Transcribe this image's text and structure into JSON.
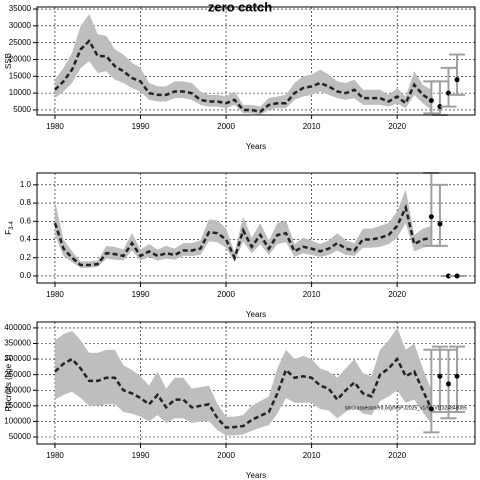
{
  "chart_data": [
    {
      "type": "line",
      "title": "zero catch",
      "ylabel": "SSB",
      "xlabel": "Years",
      "x": [
        1980,
        1981,
        1982,
        1983,
        1984,
        1985,
        1986,
        1987,
        1988,
        1989,
        1990,
        1991,
        1992,
        1993,
        1994,
        1995,
        1996,
        1997,
        1998,
        1999,
        2000,
        2001,
        2002,
        2003,
        2004,
        2005,
        2006,
        2007,
        2008,
        2009,
        2010,
        2011,
        2012,
        2013,
        2014,
        2015,
        2016,
        2017,
        2018,
        2019,
        2020,
        2021,
        2022,
        2023,
        2024
      ],
      "values": [
        11000,
        13500,
        17000,
        23000,
        25500,
        21000,
        21000,
        18000,
        16500,
        14500,
        13500,
        10000,
        9500,
        9500,
        10500,
        10500,
        10000,
        8000,
        7500,
        7500,
        7000,
        8000,
        5000,
        5000,
        4500,
        6500,
        7000,
        7000,
        10000,
        11500,
        12000,
        13000,
        12000,
        10500,
        10000,
        11000,
        8500,
        8500,
        8500,
        7500,
        9000,
        7000,
        12500,
        9500,
        7800
      ],
      "lower": [
        8500,
        10500,
        13000,
        17500,
        19500,
        16000,
        16500,
        14000,
        13000,
        11500,
        10500,
        8000,
        7500,
        7500,
        8500,
        8500,
        8000,
        6500,
        6000,
        6000,
        5500,
        6500,
        4000,
        4000,
        3500,
        5000,
        5500,
        5500,
        8000,
        9000,
        9500,
        10500,
        9500,
        8500,
        8000,
        8500,
        6500,
        6500,
        6500,
        6000,
        7000,
        5500,
        9500,
        7000,
        5000
      ],
      "upper": [
        14000,
        17500,
        22000,
        30000,
        33500,
        27500,
        27000,
        23000,
        21500,
        19000,
        17500,
        13000,
        12000,
        12000,
        13500,
        13500,
        13000,
        10500,
        9500,
        9500,
        9000,
        10500,
        6500,
        6500,
        6000,
        8500,
        9000,
        9500,
        13000,
        15000,
        15500,
        17000,
        15500,
        13500,
        13000,
        14000,
        11000,
        11000,
        11000,
        9500,
        11500,
        9000,
        16500,
        12500,
        11000
      ],
      "projection": {
        "x": [
          2024,
          2025,
          2026,
          2027
        ],
        "values": [
          7800,
          6000,
          10000,
          14000
        ],
        "lower": [
          4000,
          3500,
          6000,
          9500
        ],
        "upper": [
          13500,
          13500,
          17500,
          21500
        ]
      },
      "xlim": [
        1977.9,
        2029.1
      ],
      "xticks": [
        1980,
        1990,
        2000,
        2010,
        2020
      ],
      "ylim": [
        3500,
        35600
      ],
      "yticks": [
        5000,
        10000,
        15000,
        20000,
        25000,
        30000,
        35000
      ],
      "grid": true,
      "band_color": "#bebebe",
      "line_color": "#222222"
    },
    {
      "type": "line",
      "ylabel": "F",
      "ylabel_sub": "3-4",
      "xlabel": "Years",
      "x": [
        1980,
        1981,
        1982,
        1983,
        1984,
        1985,
        1986,
        1987,
        1988,
        1989,
        1990,
        1991,
        1992,
        1993,
        1994,
        1995,
        1996,
        1997,
        1998,
        1999,
        2000,
        2001,
        2002,
        2003,
        2004,
        2005,
        2006,
        2007,
        2008,
        2009,
        2010,
        2011,
        2012,
        2013,
        2014,
        2015,
        2016,
        2017,
        2018,
        2019,
        2020,
        2021,
        2022,
        2023,
        2024
      ],
      "values": [
        0.58,
        0.3,
        0.2,
        0.12,
        0.12,
        0.13,
        0.25,
        0.24,
        0.22,
        0.36,
        0.22,
        0.27,
        0.22,
        0.25,
        0.23,
        0.28,
        0.28,
        0.3,
        0.48,
        0.47,
        0.4,
        0.2,
        0.5,
        0.32,
        0.45,
        0.3,
        0.45,
        0.47,
        0.27,
        0.32,
        0.3,
        0.27,
        0.3,
        0.36,
        0.3,
        0.28,
        0.4,
        0.4,
        0.42,
        0.45,
        0.55,
        0.75,
        0.35,
        0.4,
        0.42
      ],
      "lower": [
        0.45,
        0.22,
        0.15,
        0.09,
        0.09,
        0.1,
        0.19,
        0.18,
        0.17,
        0.28,
        0.17,
        0.21,
        0.17,
        0.19,
        0.18,
        0.22,
        0.22,
        0.23,
        0.38,
        0.37,
        0.31,
        0.15,
        0.38,
        0.25,
        0.35,
        0.23,
        0.35,
        0.37,
        0.21,
        0.25,
        0.23,
        0.21,
        0.23,
        0.28,
        0.23,
        0.22,
        0.31,
        0.31,
        0.32,
        0.35,
        0.42,
        0.58,
        0.27,
        0.31,
        0.33
      ],
      "upper": [
        0.82,
        0.4,
        0.27,
        0.16,
        0.16,
        0.17,
        0.33,
        0.32,
        0.29,
        0.47,
        0.29,
        0.35,
        0.29,
        0.33,
        0.3,
        0.36,
        0.36,
        0.39,
        0.62,
        0.61,
        0.52,
        0.26,
        0.65,
        0.42,
        0.58,
        0.39,
        0.58,
        0.61,
        0.35,
        0.42,
        0.39,
        0.35,
        0.39,
        0.47,
        0.39,
        0.36,
        0.52,
        0.52,
        0.55,
        0.58,
        0.71,
        0.95,
        0.45,
        0.52,
        0.55
      ],
      "projection": {
        "x": [
          2024,
          2025,
          2026,
          2027
        ],
        "values": [
          0.65,
          0.57,
          0,
          0
        ],
        "lower": [
          0.33,
          0.33,
          0,
          0
        ],
        "upper": [
          1.13,
          1.0,
          0,
          0
        ]
      },
      "xlim": [
        1977.9,
        2029.1
      ],
      "xticks": [
        1980,
        1990,
        2000,
        2010,
        2020
      ],
      "ylim": [
        -0.077,
        1.13
      ],
      "yticks": [
        {
          "value": 0,
          "label": "0.0"
        },
        0.2,
        0.4,
        0.6,
        0.8,
        {
          "value": 1,
          "label": "1.0"
        }
      ],
      "grid": true,
      "band_color": "#bebebe",
      "line_color": "#222222"
    },
    {
      "type": "line",
      "ylabel": "Recruits (age 1)",
      "xlabel": "Years",
      "watermark": "stockassessment.org/NSPJ2025_v1/96_id1324848085",
      "x": [
        1980,
        1981,
        1982,
        1983,
        1984,
        1985,
        1986,
        1987,
        1988,
        1989,
        1990,
        1991,
        1992,
        1993,
        1994,
        1995,
        1996,
        1997,
        1998,
        1999,
        2000,
        2001,
        2002,
        2003,
        2004,
        2005,
        2006,
        2007,
        2008,
        2009,
        2010,
        2011,
        2012,
        2013,
        2014,
        2015,
        2016,
        2017,
        2018,
        2019,
        2020,
        2021,
        2022,
        2023,
        2024
      ],
      "values": [
        260000,
        285000,
        300000,
        270000,
        230000,
        230000,
        240000,
        240000,
        200000,
        190000,
        175000,
        155000,
        185000,
        145000,
        170000,
        170000,
        145000,
        150000,
        155000,
        110000,
        80000,
        82000,
        85000,
        105000,
        118000,
        130000,
        190000,
        265000,
        240000,
        245000,
        240000,
        215000,
        205000,
        170000,
        200000,
        225000,
        190000,
        180000,
        250000,
        270000,
        300000,
        245000,
        260000,
        200000,
        140000
      ],
      "lower": [
        170000,
        185000,
        195000,
        175000,
        150000,
        150000,
        155000,
        155000,
        130000,
        125000,
        115000,
        100000,
        120000,
        95000,
        110000,
        110000,
        95000,
        100000,
        100000,
        72000,
        55000,
        55000,
        58000,
        70000,
        80000,
        88000,
        125000,
        175000,
        160000,
        160000,
        160000,
        140000,
        135000,
        110000,
        130000,
        150000,
        125000,
        120000,
        165000,
        180000,
        200000,
        160000,
        170000,
        130000,
        90000
      ],
      "upper": [
        360000,
        380000,
        390000,
        360000,
        320000,
        320000,
        330000,
        330000,
        280000,
        265000,
        245000,
        215000,
        260000,
        205000,
        240000,
        240000,
        205000,
        210000,
        215000,
        155000,
        115000,
        115000,
        120000,
        150000,
        165000,
        180000,
        270000,
        330000,
        300000,
        310000,
        300000,
        270000,
        260000,
        240000,
        270000,
        300000,
        255000,
        245000,
        330000,
        360000,
        400000,
        330000,
        350000,
        270000,
        200000
      ],
      "projection": {
        "x": [
          2024,
          2025,
          2026,
          2027
        ],
        "values": [
          140000,
          245000,
          220000,
          245000
        ],
        "lower": [
          65000,
          130000,
          110000,
          130000
        ],
        "upper": [
          330000,
          340000,
          330000,
          340000
        ]
      },
      "xlim": [
        1977.9,
        2029.1
      ],
      "xticks": [
        1980,
        1990,
        2000,
        2010,
        2020
      ],
      "ylim": [
        27500,
        419000
      ],
      "yticks": [
        50000,
        100000,
        150000,
        200000,
        250000,
        300000,
        350000,
        400000
      ],
      "grid": true,
      "band_color": "#bebebe",
      "line_color": "#222222"
    }
  ]
}
